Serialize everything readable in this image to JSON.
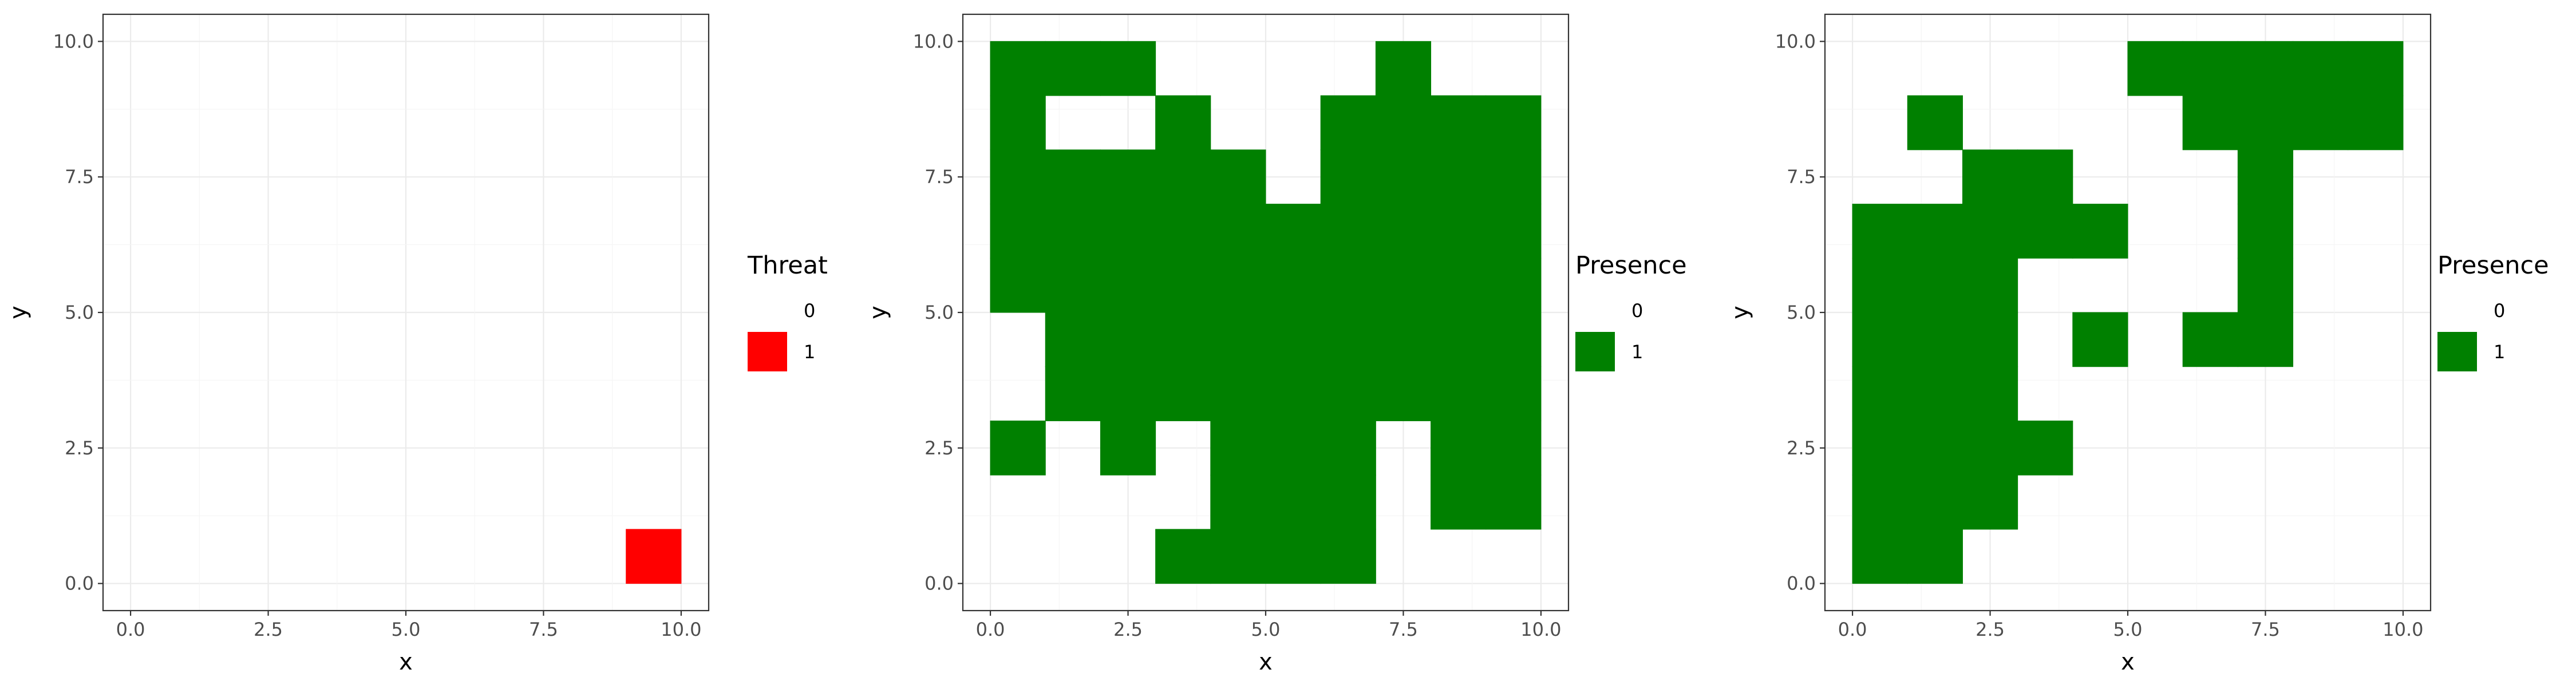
{
  "chart_data": [
    {
      "type": "heatmap",
      "title": "",
      "xlabel": "x",
      "ylabel": "y",
      "xlim": [
        0,
        10
      ],
      "ylim": [
        0,
        10
      ],
      "xticks": [
        "0.0",
        "2.5",
        "5.0",
        "7.5",
        "10.0"
      ],
      "yticks": [
        "0.0",
        "2.5",
        "5.0",
        "7.5",
        "10.0"
      ],
      "grid": true,
      "legend": {
        "title": "Threat",
        "placement": "right",
        "entries": [
          "0",
          "1"
        ]
      },
      "colors": {
        "0": "#ffffff",
        "1": "#ff0000"
      },
      "cells": [
        [
          9,
          0
        ]
      ]
    },
    {
      "type": "heatmap",
      "title": "",
      "xlabel": "x",
      "ylabel": "y",
      "xlim": [
        0,
        10
      ],
      "ylim": [
        0,
        10
      ],
      "xticks": [
        "0.0",
        "2.5",
        "5.0",
        "7.5",
        "10.0"
      ],
      "yticks": [
        "0.0",
        "2.5",
        "5.0",
        "7.5",
        "10.0"
      ],
      "grid": true,
      "legend": {
        "title": "Presence",
        "placement": "right",
        "entries": [
          "0",
          "1"
        ]
      },
      "colors": {
        "0": "#ffffff",
        "1": "#008000"
      },
      "cells": [
        [
          0,
          9
        ],
        [
          1,
          9
        ],
        [
          2,
          9
        ],
        [
          7,
          9
        ],
        [
          0,
          8
        ],
        [
          3,
          8
        ],
        [
          6,
          8
        ],
        [
          7,
          8
        ],
        [
          8,
          8
        ],
        [
          9,
          8
        ],
        [
          0,
          7
        ],
        [
          1,
          7
        ],
        [
          2,
          7
        ],
        [
          3,
          7
        ],
        [
          4,
          7
        ],
        [
          6,
          7
        ],
        [
          7,
          7
        ],
        [
          8,
          7
        ],
        [
          9,
          7
        ],
        [
          0,
          6
        ],
        [
          1,
          6
        ],
        [
          2,
          6
        ],
        [
          3,
          6
        ],
        [
          4,
          6
        ],
        [
          5,
          6
        ],
        [
          6,
          6
        ],
        [
          7,
          6
        ],
        [
          8,
          6
        ],
        [
          9,
          6
        ],
        [
          0,
          5
        ],
        [
          1,
          5
        ],
        [
          2,
          5
        ],
        [
          3,
          5
        ],
        [
          4,
          5
        ],
        [
          5,
          5
        ],
        [
          6,
          5
        ],
        [
          7,
          5
        ],
        [
          8,
          5
        ],
        [
          9,
          5
        ],
        [
          1,
          4
        ],
        [
          2,
          4
        ],
        [
          3,
          4
        ],
        [
          4,
          4
        ],
        [
          5,
          4
        ],
        [
          6,
          4
        ],
        [
          7,
          4
        ],
        [
          8,
          4
        ],
        [
          9,
          4
        ],
        [
          1,
          3
        ],
        [
          2,
          3
        ],
        [
          3,
          3
        ],
        [
          4,
          3
        ],
        [
          5,
          3
        ],
        [
          6,
          3
        ],
        [
          7,
          3
        ],
        [
          8,
          3
        ],
        [
          9,
          3
        ],
        [
          0,
          2
        ],
        [
          2,
          2
        ],
        [
          4,
          2
        ],
        [
          5,
          2
        ],
        [
          6,
          2
        ],
        [
          8,
          2
        ],
        [
          9,
          2
        ],
        [
          4,
          1
        ],
        [
          5,
          1
        ],
        [
          6,
          1
        ],
        [
          8,
          1
        ],
        [
          9,
          1
        ],
        [
          3,
          0
        ],
        [
          4,
          0
        ],
        [
          5,
          0
        ],
        [
          6,
          0
        ]
      ]
    },
    {
      "type": "heatmap",
      "title": "",
      "xlabel": "x",
      "ylabel": "y",
      "xlim": [
        0,
        10
      ],
      "ylim": [
        0,
        10
      ],
      "xticks": [
        "0.0",
        "2.5",
        "5.0",
        "7.5",
        "10.0"
      ],
      "yticks": [
        "0.0",
        "2.5",
        "5.0",
        "7.5",
        "10.0"
      ],
      "grid": true,
      "legend": {
        "title": "Presence",
        "placement": "right",
        "entries": [
          "0",
          "1"
        ]
      },
      "colors": {
        "0": "#ffffff",
        "1": "#008000"
      },
      "cells": [
        [
          5,
          9
        ],
        [
          6,
          9
        ],
        [
          7,
          9
        ],
        [
          8,
          9
        ],
        [
          9,
          9
        ],
        [
          1,
          8
        ],
        [
          6,
          8
        ],
        [
          7,
          8
        ],
        [
          8,
          8
        ],
        [
          9,
          8
        ],
        [
          2,
          7
        ],
        [
          3,
          7
        ],
        [
          7,
          7
        ],
        [
          0,
          6
        ],
        [
          1,
          6
        ],
        [
          2,
          6
        ],
        [
          3,
          6
        ],
        [
          4,
          6
        ],
        [
          7,
          6
        ],
        [
          0,
          5
        ],
        [
          1,
          5
        ],
        [
          2,
          5
        ],
        [
          7,
          5
        ],
        [
          0,
          4
        ],
        [
          1,
          4
        ],
        [
          2,
          4
        ],
        [
          4,
          4
        ],
        [
          6,
          4
        ],
        [
          7,
          4
        ],
        [
          0,
          3
        ],
        [
          1,
          3
        ],
        [
          2,
          3
        ],
        [
          0,
          2
        ],
        [
          1,
          2
        ],
        [
          2,
          2
        ],
        [
          3,
          2
        ],
        [
          0,
          1
        ],
        [
          1,
          1
        ],
        [
          2,
          1
        ],
        [
          0,
          0
        ],
        [
          1,
          0
        ]
      ]
    }
  ]
}
